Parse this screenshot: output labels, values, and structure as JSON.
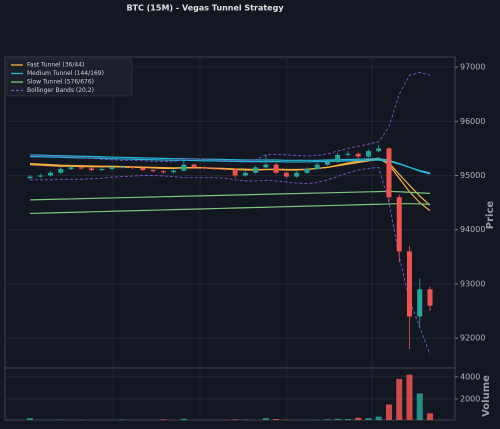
{
  "chart_data": {
    "type": "candlestick",
    "title": "BTC (15M) - Vegas Tunnel Strategy",
    "ylabel": "Price",
    "ylim": [
      91450,
      97185
    ],
    "yticks": [
      92000,
      93000,
      94000,
      95000,
      96000,
      97000
    ],
    "grid": true,
    "legend": "upper left",
    "up_color": "#26a69a",
    "down_color": "#ef5350",
    "candles": {
      "open": [
        94950,
        94980,
        95000,
        95050,
        95120,
        95150,
        95130,
        95100,
        95120,
        95150,
        95160,
        95140,
        95100,
        95080,
        95060,
        95090,
        95200,
        95150,
        95130,
        95120,
        95110,
        95000,
        95050,
        95150,
        95200,
        95050,
        94980,
        95050,
        95120,
        95200,
        95250,
        95380,
        95400,
        95350,
        95450,
        95500,
        94600,
        93600,
        92400,
        92900
      ],
      "high": [
        95010,
        95030,
        95080,
        95150,
        95180,
        95170,
        95150,
        95150,
        95180,
        95190,
        95180,
        95160,
        95120,
        95100,
        95120,
        95280,
        95220,
        95170,
        95150,
        95140,
        95130,
        95080,
        95180,
        95380,
        95230,
        95070,
        95080,
        95150,
        95230,
        95280,
        95420,
        95450,
        95430,
        95480,
        95560,
        95520,
        94650,
        93700,
        93100,
        92950
      ],
      "low": [
        94930,
        94960,
        94980,
        95030,
        95100,
        95110,
        95080,
        95080,
        95100,
        95130,
        95120,
        95080,
        95060,
        95030,
        95040,
        95070,
        95130,
        95110,
        95100,
        95090,
        94950,
        94980,
        95030,
        95130,
        95030,
        94950,
        94960,
        95030,
        95100,
        95180,
        95230,
        95350,
        95300,
        95330,
        95430,
        94500,
        93400,
        91800,
        92200,
        92500
      ],
      "close": [
        94980,
        95000,
        95050,
        95120,
        95150,
        95130,
        95100,
        95120,
        95150,
        95160,
        95140,
        95100,
        95080,
        95060,
        95090,
        95200,
        95150,
        95130,
        95120,
        95110,
        95000,
        95050,
        95150,
        95200,
        95050,
        94980,
        95050,
        95120,
        95200,
        95250,
        95380,
        95400,
        95350,
        95450,
        95500,
        94600,
        93600,
        92400,
        92900,
        92600
      ]
    },
    "series": [
      {
        "name": "Fast Tunnel (36/44)",
        "color": "#f5b041",
        "style": "solid",
        "lines": [
          [
            95200,
            95190,
            95180,
            95170,
            95170,
            95165,
            95160,
            95160,
            95160,
            95155,
            95150,
            95150,
            95140,
            95130,
            95130,
            95140,
            95140,
            95140,
            95130,
            95120,
            95110,
            95100,
            95100,
            95110,
            95110,
            95100,
            95100,
            95110,
            95130,
            95150,
            95190,
            95230,
            95260,
            95290,
            95320,
            95200,
            94950,
            94700,
            94500,
            94350
          ],
          [
            95220,
            95210,
            95200,
            95190,
            95185,
            95180,
            95175,
            95170,
            95170,
            95165,
            95160,
            95155,
            95150,
            95145,
            95140,
            95145,
            95145,
            95140,
            95135,
            95130,
            95120,
            95115,
            95110,
            95110,
            95115,
            95110,
            95110,
            95115,
            95130,
            95150,
            95180,
            95210,
            95240,
            95270,
            95300,
            95230,
            95020,
            94820,
            94620,
            94450
          ]
        ]
      },
      {
        "name": "Medium Tunnel (144/169)",
        "color": "#29b6d6",
        "style": "solid",
        "lines": [
          [
            95380,
            95375,
            95370,
            95365,
            95360,
            95355,
            95350,
            95345,
            95340,
            95335,
            95330,
            95325,
            95320,
            95315,
            95310,
            95310,
            95305,
            95300,
            95300,
            95295,
            95290,
            95285,
            95285,
            95285,
            95285,
            95280,
            95280,
            95280,
            95280,
            95285,
            95290,
            95295,
            95300,
            95305,
            95310,
            95280,
            95220,
            95150,
            95080,
            95030
          ],
          [
            95350,
            95345,
            95340,
            95335,
            95330,
            95325,
            95320,
            95315,
            95310,
            95305,
            95300,
            95295,
            95290,
            95285,
            95280,
            95280,
            95275,
            95270,
            95270,
            95265,
            95260,
            95255,
            95255,
            95255,
            95255,
            95250,
            95250,
            95250,
            95255,
            95260,
            95265,
            95270,
            95275,
            95280,
            95285,
            95260,
            95210,
            95150,
            95090,
            95050
          ]
        ]
      },
      {
        "name": "Slow Tunnel (576/676)",
        "color": "#7bc67b",
        "style": "solid",
        "lines": [
          [
            94550,
            94555,
            94559,
            94564,
            94568,
            94573,
            94577,
            94582,
            94586,
            94591,
            94595,
            94600,
            94604,
            94609,
            94613,
            94618,
            94622,
            94627,
            94631,
            94636,
            94640,
            94645,
            94649,
            94654,
            94658,
            94663,
            94667,
            94672,
            94676,
            94681,
            94685,
            94690,
            94694,
            94699,
            94703,
            94708,
            94700,
            94690,
            94680,
            94670
          ],
          [
            94300,
            94305,
            94310,
            94315,
            94320,
            94325,
            94330,
            94335,
            94340,
            94345,
            94350,
            94355,
            94360,
            94365,
            94370,
            94375,
            94380,
            94385,
            94390,
            94395,
            94400,
            94405,
            94410,
            94415,
            94420,
            94425,
            94430,
            94435,
            94440,
            94445,
            94450,
            94455,
            94460,
            94465,
            94470,
            94475,
            94480,
            94480,
            94475,
            94470
          ]
        ]
      },
      {
        "name": "Bollinger Bands (20,2)",
        "color": "#7b52c9",
        "style": "dashed",
        "lines": [
          [
            95380,
            95370,
            95360,
            95350,
            95340,
            95330,
            95320,
            95300,
            95290,
            95280,
            95280,
            95270,
            95260,
            95260,
            95250,
            95300,
            95310,
            95300,
            95290,
            95280,
            95280,
            95270,
            95290,
            95380,
            95390,
            95380,
            95370,
            95360,
            95370,
            95400,
            95450,
            95500,
            95540,
            95580,
            95620,
            95900,
            96500,
            96850,
            96900,
            96850
          ],
          [
            94920,
            94920,
            94920,
            94930,
            94930,
            94930,
            94940,
            94950,
            94970,
            94980,
            94990,
            95000,
            95000,
            94990,
            94980,
            94960,
            94960,
            94960,
            94960,
            94950,
            94920,
            94900,
            94900,
            94910,
            94900,
            94880,
            94860,
            94850,
            94870,
            94920,
            94980,
            95050,
            95100,
            95130,
            95150,
            94500,
            93500,
            92700,
            92200,
            91700
          ]
        ]
      }
    ],
    "volume": {
      "label": "Volume",
      "ylim": [
        0,
        4800
      ],
      "yticks": [
        2000,
        4000
      ],
      "values": [
        250,
        100,
        80,
        120,
        90,
        110,
        80,
        100,
        90,
        120,
        80,
        100,
        90,
        150,
        80,
        200,
        100,
        80,
        90,
        110,
        150,
        120,
        90,
        250,
        180,
        120,
        100,
        90,
        110,
        150,
        200,
        180,
        300,
        250,
        400,
        1500,
        3800,
        4200,
        2500,
        700
      ]
    }
  }
}
